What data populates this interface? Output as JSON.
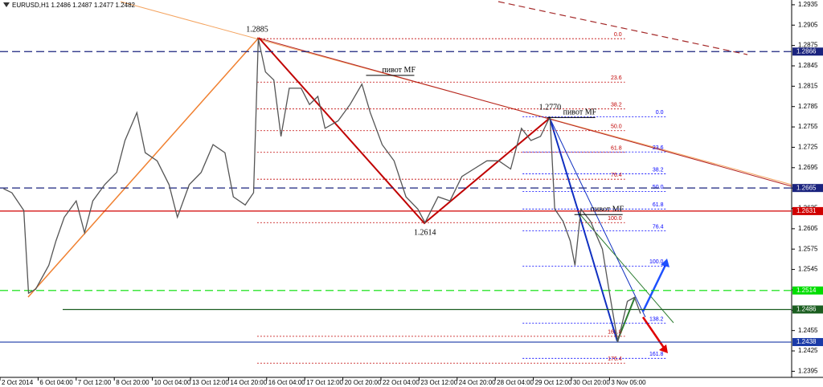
{
  "chart_data": {
    "type": "line",
    "title": "EURUSD,H1  1.2486 1.2487 1.2477 1.2482",
    "xlim": [
      0,
      665
    ],
    "ylim": [
      1.2386,
      1.2942
    ],
    "xticks": [
      {
        "value": 0,
        "label": "2 Oct 2014"
      },
      {
        "value": 32,
        "label": "6 Oct 04:00"
      },
      {
        "value": 64,
        "label": "7 Oct 12:00"
      },
      {
        "value": 96,
        "label": "8 Oct 20:00"
      },
      {
        "value": 128,
        "label": "10 Oct 04:00"
      },
      {
        "value": 160,
        "label": "13 Oct 12:00"
      },
      {
        "value": 192,
        "label": "14 Oct 20:00"
      },
      {
        "value": 224,
        "label": "16 Oct 04:00"
      },
      {
        "value": 256,
        "label": "17 Oct 12:00"
      },
      {
        "value": 288,
        "label": "20 Oct 20:00"
      },
      {
        "value": 320,
        "label": "22 Oct 04:00"
      },
      {
        "value": 352,
        "label": "23 Oct 12:00"
      },
      {
        "value": 384,
        "label": "24 Oct 20:00"
      },
      {
        "value": 416,
        "label": "28 Oct 04:00"
      },
      {
        "value": 448,
        "label": "29 Oct 12:00"
      },
      {
        "value": 480,
        "label": "30 Oct 20:00"
      },
      {
        "value": 512,
        "label": "3 Nov 05:00"
      }
    ],
    "yticks": [
      1.2935,
      1.2905,
      1.2875,
      1.2845,
      1.2815,
      1.2785,
      1.2755,
      1.2725,
      1.2695,
      1.2665,
      1.2635,
      1.2605,
      1.2575,
      1.2545,
      1.2515,
      1.2485,
      1.2455,
      1.2425,
      1.2395
    ],
    "series": [
      {
        "color": "#555555",
        "x": [
          3,
          10,
          20,
          24,
          30,
          41,
          47,
          54,
          64,
          71,
          78,
          88,
          98,
          105,
          115,
          122,
          132,
          142,
          149,
          159,
          169,
          179,
          189,
          196,
          206,
          213,
          217,
          223,
          230,
          236,
          243,
          253,
          260,
          267,
          273,
          284,
          294,
          304,
          311,
          321,
          331,
          341,
          351,
          357,
          368,
          378,
          388,
          398,
          409,
          419,
          429,
          438,
          446,
          454,
          462,
          466,
          473,
          479,
          483,
          488,
          496,
          506,
          512,
          519,
          527,
          533,
          538
        ],
        "values": [
          1.2664,
          1.2658,
          1.2632,
          1.251,
          1.2516,
          1.2551,
          1.2587,
          1.2622,
          1.2646,
          1.2599,
          1.2646,
          1.267,
          1.2688,
          1.2735,
          1.2776,
          1.2717,
          1.2705,
          1.267,
          1.2622,
          1.267,
          1.2688,
          1.2729,
          1.2717,
          1.2652,
          1.264,
          1.2658,
          1.2885,
          1.2836,
          1.2824,
          1.2741,
          1.2812,
          1.2812,
          1.2788,
          1.28,
          1.2753,
          1.2764,
          1.2788,
          1.2818,
          1.2776,
          1.2729,
          1.2705,
          1.2652,
          1.2634,
          1.2614,
          1.2652,
          1.2646,
          1.2682,
          1.2693,
          1.2705,
          1.2705,
          1.2693,
          1.2753,
          1.2735,
          1.2741,
          1.277,
          1.2634,
          1.2616,
          1.2587,
          1.2551,
          1.2634,
          1.2616,
          1.2575,
          1.251,
          1.2438,
          1.2498,
          1.2504,
          1.248
        ]
      }
    ],
    "levels": [
      {
        "value": 1.2866,
        "color": "#1a237e",
        "dash": true
      },
      {
        "value": 1.2665,
        "color": "#1a237e",
        "dash": true
      },
      {
        "value": 1.2631,
        "color": "#d00000",
        "dash": false
      },
      {
        "value": 1.2514,
        "color": "#00dd00",
        "dash": true
      },
      {
        "value": 1.2486,
        "color": "#1b5e20",
        "dash": false
      },
      {
        "value": 1.2438,
        "color": "#1a3aa8",
        "dash": false
      }
    ],
    "fibs": [
      {
        "color": "#c00000",
        "from": 1.2885,
        "to": 1.2614,
        "x": [
          216,
          525
        ],
        "levels": [
          {
            "value": 0,
            "label": "0.0"
          },
          23.6,
          38.2,
          {
            "value": 50,
            "label": "50.0"
          },
          61.8,
          76.4,
          {
            "value": 100,
            "label": "100.0"
          },
          161.8,
          176.4
        ]
      },
      {
        "color": "#0000ff",
        "from": 1.277,
        "to": 1.255,
        "x": [
          439,
          560
        ],
        "levels": [
          {
            "value": 0,
            "label": "0.0"
          },
          23.6,
          38.2,
          {
            "value": 50,
            "label": "50.0"
          },
          61.8,
          76.4,
          {
            "value": 100,
            "label": "100.0"
          },
          138.2,
          161.8
        ]
      }
    ],
    "pivots": [
      {
        "value": 1.2885,
        "x": 216,
        "pos": "above"
      },
      {
        "value": 1.2614,
        "x": 357,
        "pos": "below"
      },
      {
        "value": 1.277,
        "label": "1.2770",
        "x": 462,
        "pos": "above"
      }
    ],
    "annotations": [
      {
        "text": "пивот MF",
        "x": 321,
        "y": 1.2838
      },
      {
        "text": "пивот MF",
        "x": 473,
        "y": 1.2776
      },
      {
        "text": "пивот MF",
        "x": 496,
        "y": 1.2633
      }
    ]
  }
}
